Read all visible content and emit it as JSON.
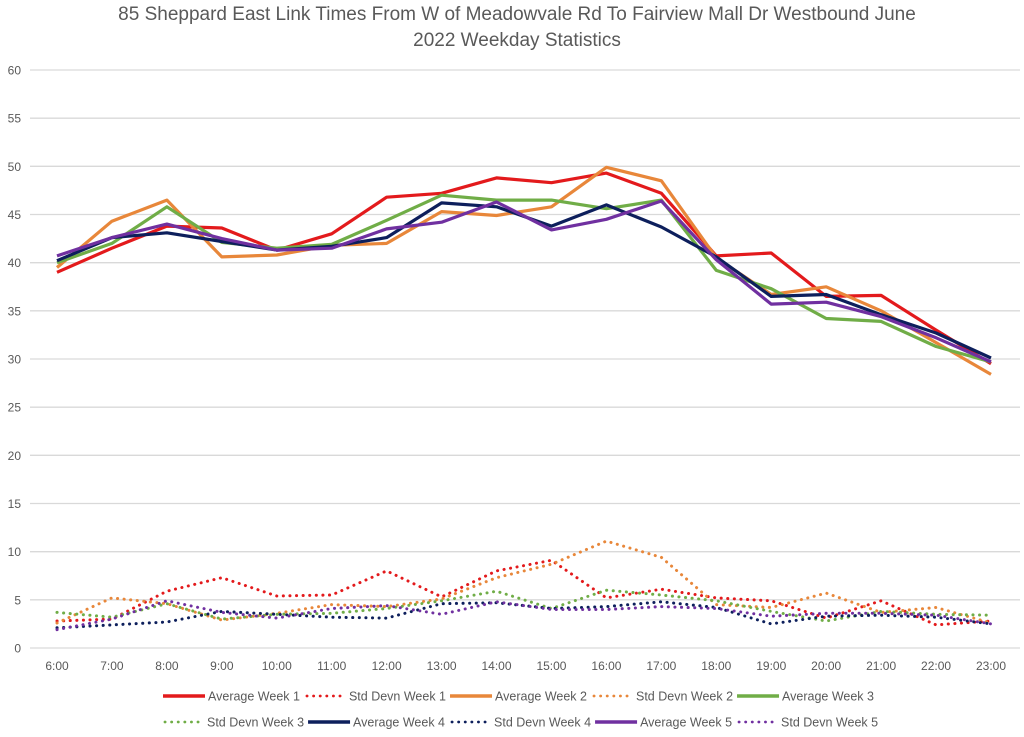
{
  "chart_data": {
    "type": "line",
    "title": "85 Sheppard East Link Times From W of Meadowvale Rd To Fairview Mall Dr Westbound June 2022 Weekday Statistics",
    "title_lines": [
      "85 Sheppard East Link Times From W of Meadowvale Rd To Fairview Mall Dr Westbound June",
      "2022 Weekday Statistics"
    ],
    "xlabel": "",
    "ylabel": "",
    "ylim": [
      0,
      60
    ],
    "yticks": [
      "0",
      "5",
      "10",
      "15",
      "20",
      "25",
      "30",
      "35",
      "40",
      "45",
      "50",
      "55",
      "60"
    ],
    "grid": true,
    "legend_position": "bottom",
    "categories": [
      "6:00",
      "7:00",
      "8:00",
      "9:00",
      "10:00",
      "11:00",
      "12:00",
      "13:00",
      "14:00",
      "15:00",
      "16:00",
      "17:00",
      "18:00",
      "19:00",
      "20:00",
      "21:00",
      "22:00",
      "23:00"
    ],
    "series": [
      {
        "name": "Average Week 1",
        "color": "#e31a1c",
        "style": "solid",
        "values": [
          39.0,
          41.5,
          43.8,
          43.6,
          41.3,
          43.0,
          46.8,
          47.2,
          48.8,
          48.3,
          49.3,
          47.2,
          40.7,
          41.0,
          36.5,
          36.6,
          33.0,
          29.5
        ]
      },
      {
        "name": "Std Devn Week 1",
        "color": "#e31a1c",
        "style": "dotted",
        "values": [
          2.8,
          3.0,
          5.9,
          7.3,
          5.4,
          5.5,
          8.0,
          5.3,
          8.0,
          9.1,
          5.2,
          6.1,
          5.2,
          4.9,
          3.1,
          4.9,
          2.4,
          2.8
        ]
      },
      {
        "name": "Average Week 2",
        "color": "#e8873a",
        "style": "solid",
        "values": [
          39.5,
          44.3,
          46.5,
          40.6,
          40.8,
          41.8,
          42.0,
          45.3,
          44.9,
          45.8,
          49.9,
          48.5,
          40.5,
          36.7,
          37.5,
          35.0,
          31.7,
          28.4
        ]
      },
      {
        "name": "Std Devn Week 2",
        "color": "#e8873a",
        "style": "dotted",
        "values": [
          2.6,
          5.2,
          4.6,
          2.9,
          3.6,
          4.5,
          4.3,
          5.1,
          7.3,
          8.7,
          11.1,
          9.4,
          4.5,
          4.2,
          5.7,
          3.7,
          4.2,
          2.6
        ]
      },
      {
        "name": "Average Week 3",
        "color": "#70ad47",
        "style": "solid",
        "values": [
          40.0,
          42.0,
          45.8,
          42.1,
          41.5,
          41.9,
          44.4,
          47.0,
          46.5,
          46.5,
          45.6,
          46.5,
          39.2,
          37.3,
          34.2,
          33.9,
          31.3,
          29.7
        ]
      },
      {
        "name": "Std Devn Week 3",
        "color": "#70ad47",
        "style": "dotted",
        "values": [
          3.7,
          3.2,
          4.6,
          3.0,
          3.5,
          3.6,
          4.1,
          4.9,
          5.9,
          4.1,
          6.0,
          5.5,
          4.9,
          3.8,
          2.8,
          3.8,
          3.5,
          3.4
        ]
      },
      {
        "name": "Average Week 4",
        "color": "#0d1f5c",
        "style": "solid",
        "values": [
          40.2,
          42.6,
          43.1,
          42.2,
          41.3,
          41.7,
          42.6,
          46.2,
          45.8,
          43.8,
          46.0,
          43.7,
          40.6,
          36.5,
          36.7,
          34.6,
          32.7,
          30.1
        ]
      },
      {
        "name": "Std Devn Week 4",
        "color": "#0d1f5c",
        "style": "dotted",
        "values": [
          2.1,
          2.4,
          2.7,
          3.8,
          3.5,
          3.2,
          3.1,
          4.6,
          4.7,
          4.1,
          4.3,
          4.8,
          4.2,
          2.5,
          3.3,
          3.4,
          3.2,
          2.5
        ]
      },
      {
        "name": "Average Week 5",
        "color": "#7030a0",
        "style": "solid",
        "values": [
          40.7,
          42.6,
          44.0,
          42.5,
          41.3,
          41.5,
          43.5,
          44.2,
          46.3,
          43.4,
          44.5,
          46.4,
          40.3,
          35.7,
          35.9,
          34.4,
          32.2,
          29.7
        ]
      },
      {
        "name": "Std Devn Week 5",
        "color": "#7030a0",
        "style": "dotted",
        "values": [
          1.9,
          3.0,
          4.9,
          3.7,
          3.1,
          4.1,
          4.4,
          3.5,
          4.8,
          4.0,
          4.0,
          4.3,
          4.1,
          3.3,
          3.6,
          3.6,
          3.4,
          2.5
        ]
      }
    ]
  }
}
